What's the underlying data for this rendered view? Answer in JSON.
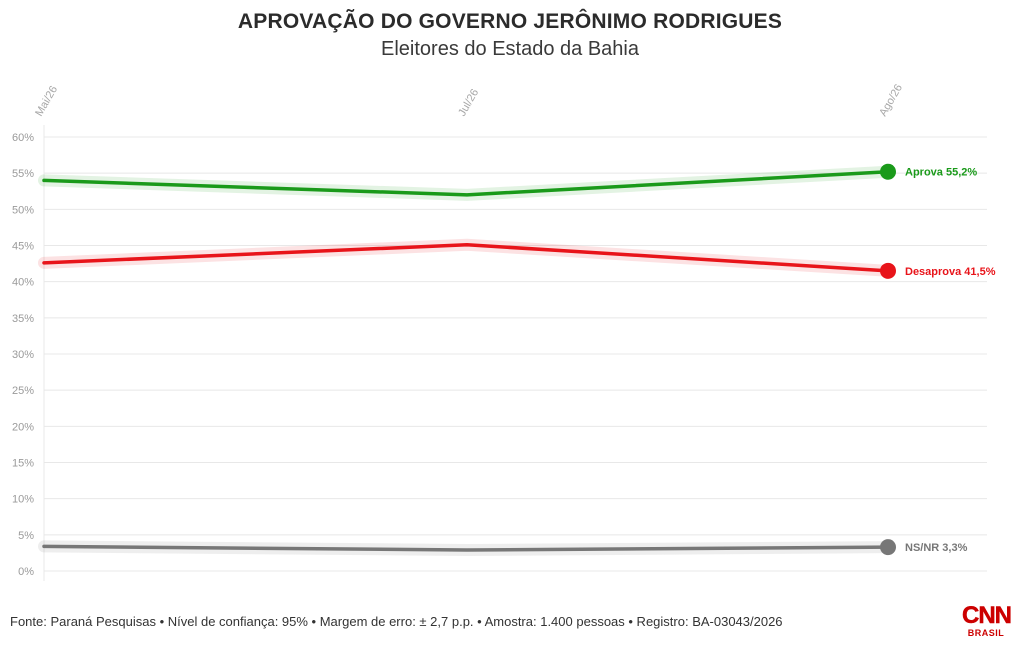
{
  "title": "APROVAÇÃO DO GOVERNO JERÔNIMO RODRIGUES",
  "subtitle": "Eleitores do Estado da Bahia",
  "footer": "Fonte: Paraná Pesquisas • Nível de confiança: 95% • Margem de erro: ± 2,7 p.p. • Amostra: 1.400 pessoas • Registro: BA-03043/2026",
  "logo": {
    "main": "CNN",
    "sub": "BRASIL",
    "color": "#cc0000"
  },
  "chart_data": {
    "type": "line",
    "x": [
      "Mai/26",
      "Jul/26",
      "Ago/26"
    ],
    "ylim": [
      0,
      60
    ],
    "yticks": [
      "0%",
      "5%",
      "10%",
      "15%",
      "20%",
      "25%",
      "30%",
      "35%",
      "40%",
      "45%",
      "50%",
      "55%",
      "60%"
    ],
    "grid": true,
    "series": [
      {
        "name": "Aprova",
        "values": [
          54.0,
          52.0,
          55.2
        ],
        "end_label": "Aprova 55,2%",
        "color": "#1a9a1a"
      },
      {
        "name": "Desaprova",
        "values": [
          42.6,
          45.1,
          41.5
        ],
        "end_label": "Desaprova 41,5%",
        "color": "#e8141a"
      },
      {
        "name": "NS/NR",
        "values": [
          3.4,
          2.9,
          3.3
        ],
        "end_label": "NS/NR 3,3%",
        "color": "#777777"
      }
    ]
  }
}
